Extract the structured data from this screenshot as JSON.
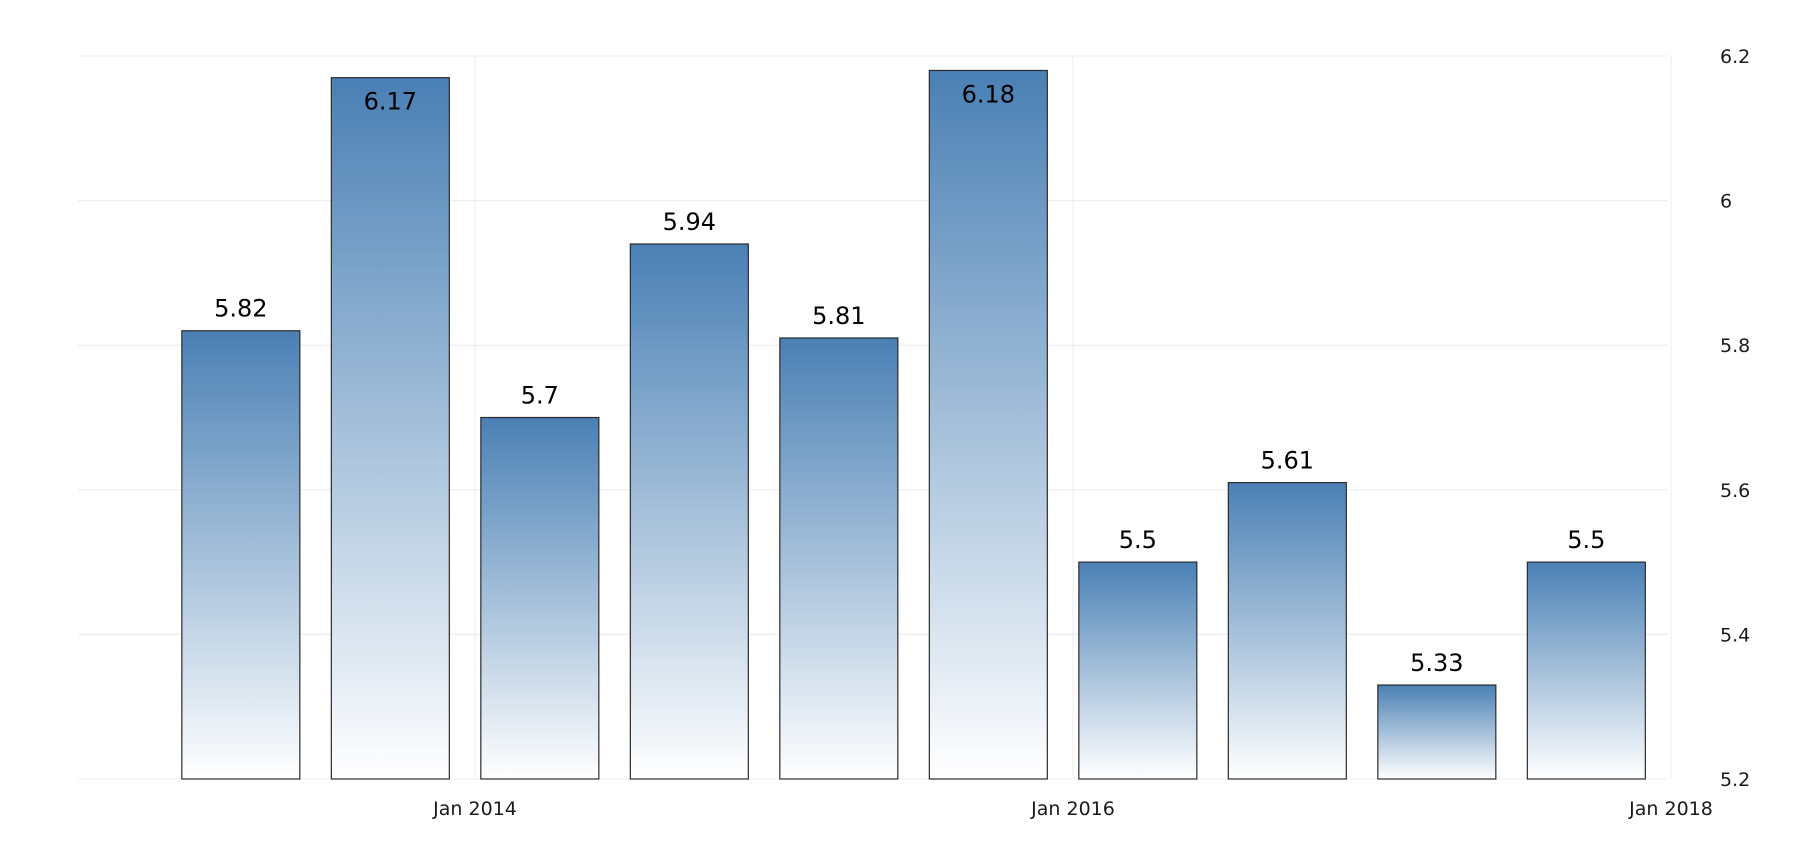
{
  "chart_data": {
    "type": "bar",
    "title": "",
    "xlabel": "",
    "ylabel": "",
    "ylim": [
      5.2,
      6.2
    ],
    "y_ticks": [
      5.2,
      5.4,
      5.6,
      5.8,
      6,
      6.2
    ],
    "y_tick_labels": [
      "5.2",
      "5.4",
      "5.6",
      "5.8",
      "6",
      "6.2"
    ],
    "x_ticks": [
      {
        "label": "Jan 2014",
        "date": "2014-01"
      },
      {
        "label": "Jan 2016",
        "date": "2016-01"
      },
      {
        "label": "Jan 2018",
        "date": "2018-01"
      }
    ],
    "categories": [
      "2013-03",
      "2013-09",
      "2014-03",
      "2014-09",
      "2015-03",
      "2015-09",
      "2016-03",
      "2016-09",
      "2017-03",
      "2017-09"
    ],
    "values": [
      5.82,
      6.17,
      5.7,
      5.94,
      5.81,
      6.18,
      5.5,
      5.61,
      5.33,
      5.5
    ],
    "value_labels": [
      "5.82",
      "6.17",
      "5.7",
      "5.94",
      "5.81",
      "6.18",
      "5.5",
      "5.61",
      "5.33",
      "5.5"
    ],
    "y_axis_position": "right",
    "grid": true,
    "legend": "none",
    "colors": {
      "bar_top": "#4a80b5",
      "bar_bottom": "#ffffff",
      "bar_outline": "#2b2b2b",
      "grid": "#ececec",
      "text": "#1a1a1a"
    }
  }
}
